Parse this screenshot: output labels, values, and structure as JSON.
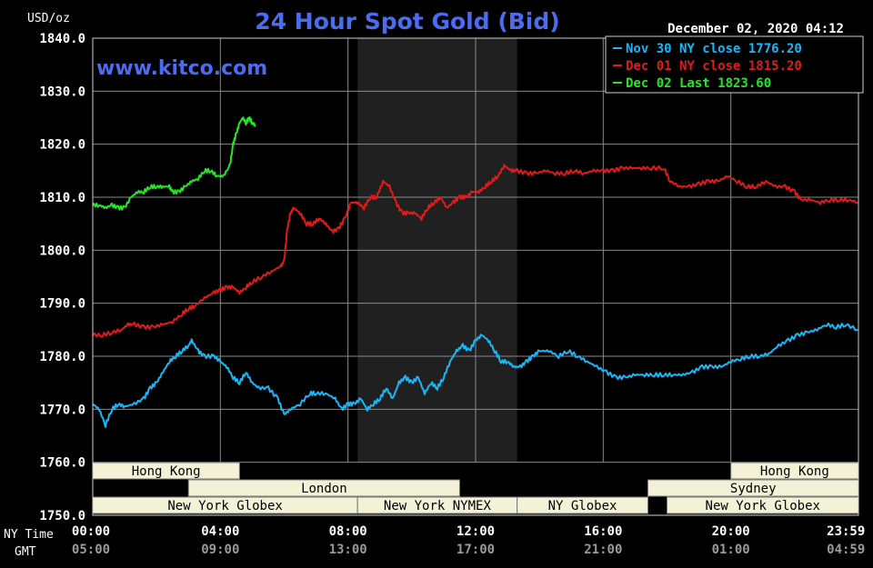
{
  "chart_data": {
    "type": "line",
    "title": "24 Hour Spot Gold (Bid)",
    "website": "www.kitco.com",
    "y_unit": "USD/oz",
    "timestamp": "December 02, 2020 04:12",
    "ylim": [
      1750,
      1840
    ],
    "y_ticks": [
      "1840.0",
      "1830.0",
      "1820.0",
      "1810.0",
      "1800.0",
      "1790.0",
      "1780.0",
      "1770.0",
      "1760.0",
      "1750.0"
    ],
    "x_row_labels": {
      "ny": "NY Time",
      "gmt": "GMT"
    },
    "x_ticks_ny": [
      "00:00",
      "04:00",
      "08:00",
      "12:00",
      "16:00",
      "20:00",
      "23:59"
    ],
    "x_ticks_gmt": [
      "05:00",
      "09:00",
      "13:00",
      "17:00",
      "21:00",
      "01:00",
      "04:59"
    ],
    "grid": true,
    "legend_position": "top-right",
    "highlight_band": {
      "from_hour": 8.3,
      "to_hour": 13.3,
      "color": "#202020"
    },
    "series": [
      {
        "name": "Nov 30 NY close 1776.20",
        "color": "#18b8f8",
        "points": [
          [
            0.0,
            1771
          ],
          [
            0.2,
            1770
          ],
          [
            0.4,
            1767
          ],
          [
            0.6,
            1770
          ],
          [
            0.8,
            1771
          ],
          [
            1.0,
            1770.5
          ],
          [
            1.3,
            1771
          ],
          [
            1.6,
            1772
          ],
          [
            1.8,
            1774
          ],
          [
            2.0,
            1775
          ],
          [
            2.2,
            1777
          ],
          [
            2.4,
            1779
          ],
          [
            2.6,
            1780
          ],
          [
            2.8,
            1781
          ],
          [
            3.0,
            1782
          ],
          [
            3.1,
            1783
          ],
          [
            3.3,
            1781
          ],
          [
            3.5,
            1780
          ],
          [
            3.8,
            1780
          ],
          [
            4.0,
            1779
          ],
          [
            4.2,
            1778
          ],
          [
            4.4,
            1776
          ],
          [
            4.6,
            1775
          ],
          [
            4.8,
            1777
          ],
          [
            5.0,
            1775
          ],
          [
            5.2,
            1774
          ],
          [
            5.5,
            1774
          ],
          [
            5.8,
            1772
          ],
          [
            6.0,
            1769
          ],
          [
            6.2,
            1770
          ],
          [
            6.5,
            1771
          ],
          [
            6.8,
            1773
          ],
          [
            7.0,
            1773
          ],
          [
            7.3,
            1773
          ],
          [
            7.6,
            1772
          ],
          [
            7.8,
            1770
          ],
          [
            8.0,
            1771
          ],
          [
            8.2,
            1771
          ],
          [
            8.4,
            1772
          ],
          [
            8.6,
            1770
          ],
          [
            8.8,
            1771
          ],
          [
            9.0,
            1772
          ],
          [
            9.2,
            1774
          ],
          [
            9.4,
            1772
          ],
          [
            9.6,
            1775
          ],
          [
            9.8,
            1776
          ],
          [
            10.0,
            1775
          ],
          [
            10.2,
            1776
          ],
          [
            10.4,
            1773
          ],
          [
            10.6,
            1775
          ],
          [
            10.8,
            1774
          ],
          [
            11.0,
            1776
          ],
          [
            11.2,
            1779
          ],
          [
            11.4,
            1781
          ],
          [
            11.6,
            1782
          ],
          [
            11.8,
            1781
          ],
          [
            12.0,
            1783
          ],
          [
            12.2,
            1784
          ],
          [
            12.4,
            1783
          ],
          [
            12.6,
            1781
          ],
          [
            12.8,
            1779
          ],
          [
            13.0,
            1779
          ],
          [
            13.2,
            1778
          ],
          [
            13.4,
            1778
          ],
          [
            13.6,
            1779
          ],
          [
            13.8,
            1780
          ],
          [
            14.0,
            1781
          ],
          [
            14.3,
            1781
          ],
          [
            14.6,
            1780
          ],
          [
            14.9,
            1781
          ],
          [
            15.2,
            1780
          ],
          [
            15.5,
            1779
          ],
          [
            15.8,
            1778
          ],
          [
            16.1,
            1777
          ],
          [
            16.4,
            1776
          ],
          [
            16.7,
            1776
          ],
          [
            17.0,
            1776.5
          ],
          [
            17.3,
            1776.5
          ],
          [
            17.6,
            1776.5
          ],
          [
            17.9,
            1776.5
          ],
          [
            18.2,
            1776.5
          ],
          [
            18.5,
            1776.5
          ],
          [
            18.8,
            1777
          ],
          [
            19.1,
            1778
          ],
          [
            19.4,
            1778
          ],
          [
            19.7,
            1778
          ],
          [
            20.0,
            1779
          ],
          [
            20.3,
            1779.5
          ],
          [
            20.6,
            1780
          ],
          [
            20.9,
            1780
          ],
          [
            21.2,
            1780.5
          ],
          [
            21.5,
            1782
          ],
          [
            21.8,
            1783
          ],
          [
            22.1,
            1784
          ],
          [
            22.4,
            1784.5
          ],
          [
            22.7,
            1785
          ],
          [
            23.0,
            1786
          ],
          [
            23.3,
            1785.5
          ],
          [
            23.6,
            1786
          ],
          [
            23.98,
            1785
          ]
        ]
      },
      {
        "name": "Dec 01 NY close 1815.20",
        "color": "#e41a1a",
        "points": [
          [
            0.0,
            1784
          ],
          [
            0.3,
            1784
          ],
          [
            0.6,
            1784.5
          ],
          [
            0.9,
            1785
          ],
          [
            1.1,
            1786
          ],
          [
            1.3,
            1786
          ],
          [
            1.6,
            1785.5
          ],
          [
            1.9,
            1785.5
          ],
          [
            2.2,
            1786
          ],
          [
            2.5,
            1786.5
          ],
          [
            2.8,
            1788
          ],
          [
            3.0,
            1789
          ],
          [
            3.2,
            1789.5
          ],
          [
            3.5,
            1791
          ],
          [
            3.8,
            1792
          ],
          [
            4.0,
            1792.5
          ],
          [
            4.2,
            1793
          ],
          [
            4.4,
            1793
          ],
          [
            4.6,
            1792
          ],
          [
            4.8,
            1793
          ],
          [
            5.0,
            1794
          ],
          [
            5.3,
            1795
          ],
          [
            5.6,
            1796
          ],
          [
            5.9,
            1797
          ],
          [
            6.0,
            1798
          ],
          [
            6.1,
            1804
          ],
          [
            6.2,
            1807
          ],
          [
            6.3,
            1808
          ],
          [
            6.5,
            1807
          ],
          [
            6.7,
            1805
          ],
          [
            6.9,
            1805
          ],
          [
            7.1,
            1806
          ],
          [
            7.3,
            1805
          ],
          [
            7.5,
            1803.5
          ],
          [
            7.7,
            1804
          ],
          [
            7.9,
            1806
          ],
          [
            8.1,
            1809
          ],
          [
            8.3,
            1809
          ],
          [
            8.5,
            1808
          ],
          [
            8.7,
            1810
          ],
          [
            8.9,
            1810
          ],
          [
            9.1,
            1813
          ],
          [
            9.3,
            1812
          ],
          [
            9.5,
            1809
          ],
          [
            9.7,
            1807
          ],
          [
            9.9,
            1807
          ],
          [
            10.1,
            1807
          ],
          [
            10.3,
            1806
          ],
          [
            10.5,
            1808
          ],
          [
            10.7,
            1809
          ],
          [
            10.9,
            1810
          ],
          [
            11.1,
            1808
          ],
          [
            11.3,
            1809
          ],
          [
            11.5,
            1810
          ],
          [
            11.7,
            1810
          ],
          [
            11.9,
            1811
          ],
          [
            12.1,
            1811
          ],
          [
            12.3,
            1812
          ],
          [
            12.5,
            1813
          ],
          [
            12.7,
            1814
          ],
          [
            12.9,
            1816
          ],
          [
            13.1,
            1815
          ],
          [
            13.3,
            1815
          ],
          [
            13.6,
            1814.5
          ],
          [
            13.9,
            1814.5
          ],
          [
            14.2,
            1815
          ],
          [
            14.5,
            1814.5
          ],
          [
            14.8,
            1814.5
          ],
          [
            15.1,
            1815
          ],
          [
            15.4,
            1814.5
          ],
          [
            15.7,
            1815
          ],
          [
            16.0,
            1815
          ],
          [
            16.3,
            1815
          ],
          [
            16.6,
            1815.5
          ],
          [
            16.9,
            1815.5
          ],
          [
            17.2,
            1815.5
          ],
          [
            17.5,
            1815.5
          ],
          [
            17.9,
            1815.5
          ],
          [
            18.1,
            1813
          ],
          [
            18.4,
            1812
          ],
          [
            18.7,
            1812
          ],
          [
            19.0,
            1812.5
          ],
          [
            19.3,
            1813
          ],
          [
            19.6,
            1813
          ],
          [
            19.9,
            1814
          ],
          [
            20.2,
            1813
          ],
          [
            20.5,
            1812
          ],
          [
            20.8,
            1812
          ],
          [
            21.1,
            1813
          ],
          [
            21.4,
            1812
          ],
          [
            21.7,
            1812
          ],
          [
            22.0,
            1811
          ],
          [
            22.2,
            1809.5
          ],
          [
            22.5,
            1809.5
          ],
          [
            22.8,
            1809
          ],
          [
            23.1,
            1809.5
          ],
          [
            23.4,
            1809.5
          ],
          [
            23.7,
            1809.5
          ],
          [
            23.98,
            1809
          ]
        ]
      },
      {
        "name": "Dec 02 Last 1823.60",
        "color": "#22e822",
        "points": [
          [
            0.0,
            1808.5
          ],
          [
            0.2,
            1808.5
          ],
          [
            0.4,
            1808
          ],
          [
            0.6,
            1808.5
          ],
          [
            0.8,
            1808
          ],
          [
            1.0,
            1808
          ],
          [
            1.2,
            1810
          ],
          [
            1.4,
            1811
          ],
          [
            1.6,
            1811
          ],
          [
            1.8,
            1812
          ],
          [
            2.0,
            1812
          ],
          [
            2.2,
            1812
          ],
          [
            2.4,
            1812
          ],
          [
            2.5,
            1811
          ],
          [
            2.7,
            1811
          ],
          [
            2.9,
            1812
          ],
          [
            3.1,
            1813
          ],
          [
            3.3,
            1813.5
          ],
          [
            3.5,
            1815
          ],
          [
            3.7,
            1815
          ],
          [
            3.9,
            1814
          ],
          [
            4.1,
            1814
          ],
          [
            4.3,
            1816
          ],
          [
            4.4,
            1820
          ],
          [
            4.5,
            1822
          ],
          [
            4.6,
            1824
          ],
          [
            4.7,
            1825
          ],
          [
            4.8,
            1824
          ],
          [
            4.9,
            1825
          ],
          [
            5.0,
            1824
          ],
          [
            5.1,
            1823.6
          ]
        ]
      }
    ],
    "session_rows": [
      {
        "row": 0,
        "segments": [
          {
            "label": "Hong Kong",
            "from_hour": 0.0,
            "to_hour": 4.6
          },
          {
            "label": "Hong Kong",
            "from_hour": 20.0,
            "to_hour": 24.0
          }
        ]
      },
      {
        "row": 1,
        "segments": [
          {
            "label": "London",
            "from_hour": 3.0,
            "to_hour": 11.5
          },
          {
            "label": "Sydney",
            "from_hour": 17.4,
            "to_hour": 24.0
          }
        ]
      },
      {
        "row": 2,
        "segments": [
          {
            "label": "New York Globex",
            "from_hour": 0.0,
            "to_hour": 8.3
          },
          {
            "label": "New York NYMEX",
            "from_hour": 8.3,
            "to_hour": 13.3
          },
          {
            "label": "NY Globex",
            "from_hour": 13.3,
            "to_hour": 17.4
          },
          {
            "label": "New York Globex",
            "from_hour": 18.0,
            "to_hour": 24.0
          }
        ]
      }
    ]
  }
}
